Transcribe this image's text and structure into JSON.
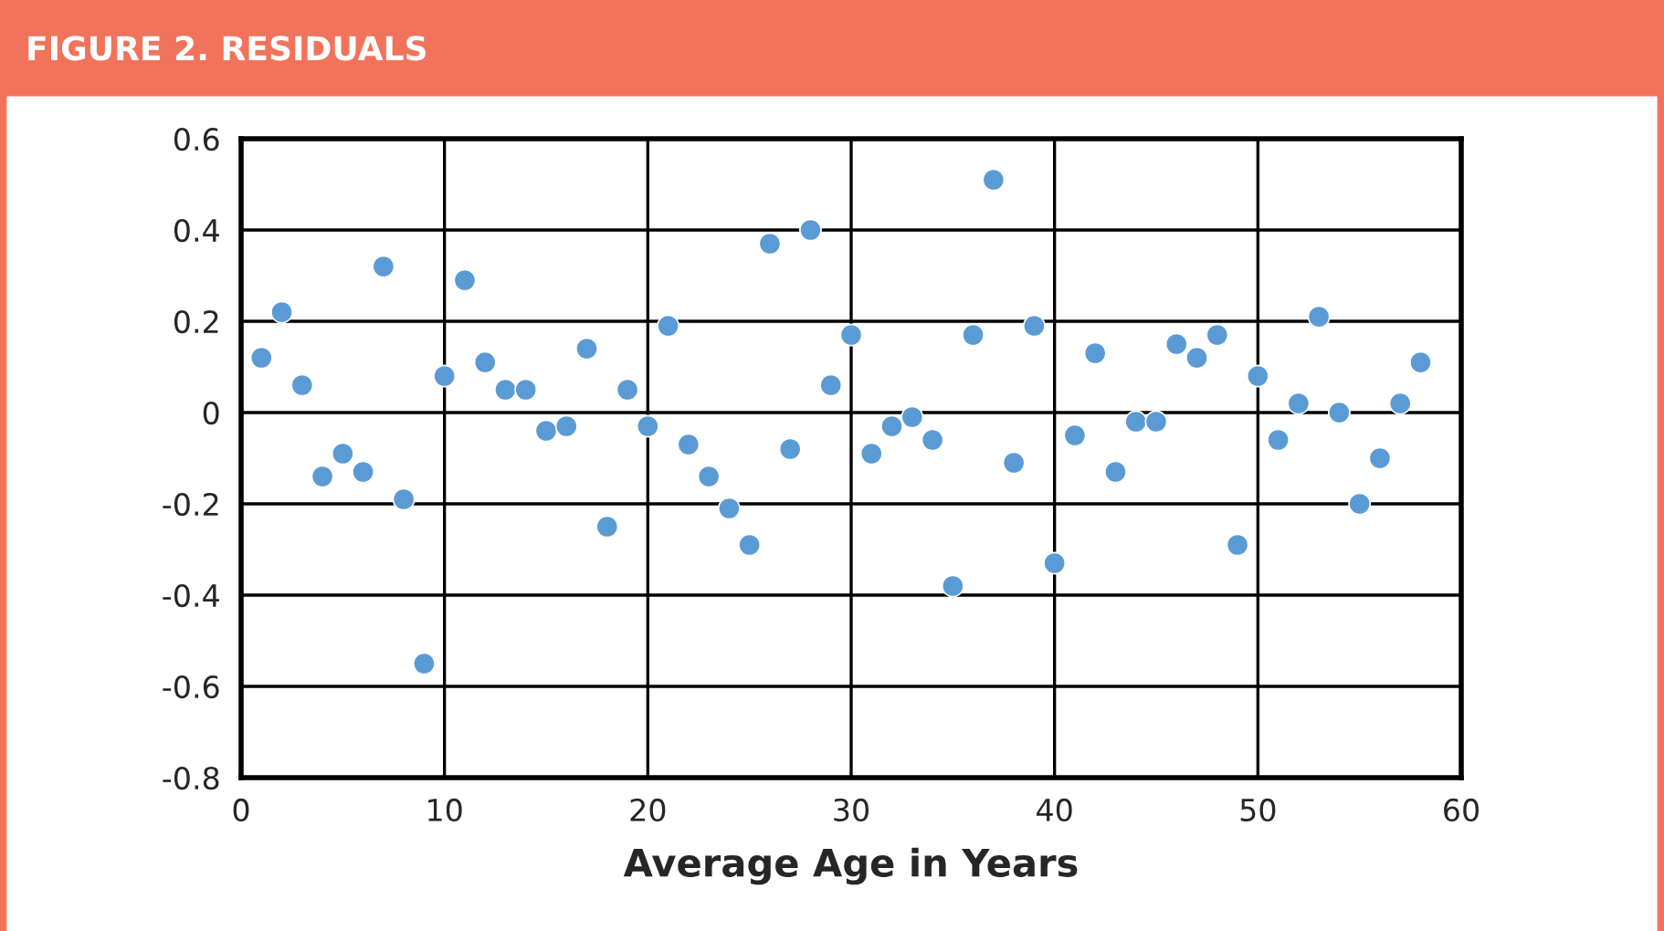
{
  "chart_data": {
    "type": "scatter",
    "title": "FIGURE 2. RESIDUALS",
    "xlabel": "Average Age in Years",
    "x": [
      1,
      2,
      3,
      4,
      5,
      6,
      7,
      8,
      9,
      10,
      11,
      12,
      13,
      14,
      15,
      16,
      17,
      18,
      19,
      20,
      21,
      22,
      23,
      24,
      25,
      26,
      27,
      28,
      29,
      30,
      31,
      32,
      33,
      34,
      35,
      36,
      37,
      38,
      39,
      40,
      41,
      42,
      43,
      44,
      45,
      46,
      47,
      48,
      49,
      50,
      51,
      52,
      53,
      54,
      55,
      56,
      57,
      58
    ],
    "series": [
      {
        "color": "#5b9bd5",
        "values": [
          0.12,
          0.22,
          0.06,
          -0.14,
          -0.09,
          -0.13,
          0.32,
          -0.19,
          -0.55,
          0.08,
          0.29,
          0.11,
          0.05,
          0.05,
          -0.04,
          -0.03,
          0.14,
          -0.25,
          0.05,
          -0.03,
          0.19,
          -0.07,
          -0.14,
          -0.21,
          -0.29,
          0.37,
          -0.08,
          0.4,
          0.06,
          0.17,
          -0.09,
          -0.03,
          -0.01,
          -0.06,
          -0.38,
          0.17,
          0.51,
          -0.11,
          0.19,
          -0.33,
          -0.05,
          0.13,
          -0.13,
          -0.02,
          -0.02,
          0.15,
          0.12,
          0.17,
          -0.29,
          0.08,
          -0.06,
          0.02,
          0.21,
          0.0,
          -0.2,
          -0.1,
          0.02,
          0.11
        ]
      }
    ],
    "xlim": [
      0,
      60
    ],
    "xticks": [
      0,
      10,
      20,
      30,
      40,
      50,
      60
    ],
    "ylim": [
      -0.8,
      0.6
    ],
    "yticks": [
      {
        "value": -0.8,
        "label": "-0.8"
      },
      {
        "value": -0.6,
        "label": "-0.6"
      },
      {
        "value": -0.4,
        "label": "-0.4"
      },
      {
        "value": -0.2,
        "label": "-0.2"
      },
      0,
      {
        "value": 0.2,
        "label": "0.2"
      },
      {
        "value": 0.4,
        "label": "0.4"
      },
      {
        "value": 0.6,
        "label": "0.6"
      }
    ],
    "grid": true,
    "marker": "circle",
    "legend": false
  }
}
